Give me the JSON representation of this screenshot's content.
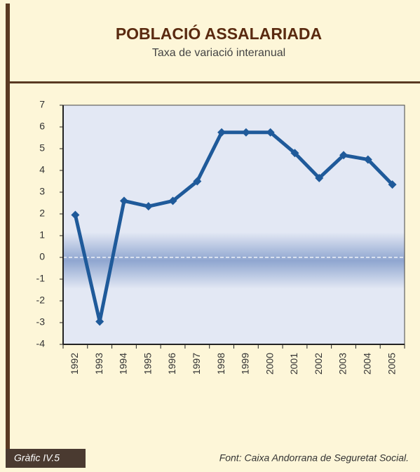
{
  "chart_data": {
    "type": "line",
    "title": "POBLACIÓ ASSALARIADA",
    "subtitle": "Taxa de variació interanual",
    "figure_label": "Gràfic IV.5",
    "source": "Font: Caixa Andorrana de Seguretat Social.",
    "categories": [
      "1992",
      "1993",
      "1994",
      "1995",
      "1996",
      "1997",
      "1998",
      "1999",
      "2000",
      "2001",
      "2002",
      "2003",
      "2004",
      "2005"
    ],
    "series": [
      {
        "name": "Taxa de variació interanual",
        "color": "#1f5a9a",
        "values": [
          1.95,
          -2.95,
          2.6,
          2.35,
          2.6,
          3.5,
          5.75,
          5.75,
          5.75,
          4.8,
          3.65,
          4.7,
          4.5,
          3.35
        ]
      }
    ],
    "ylim": [
      -4,
      7
    ],
    "yticks": [
      -4,
      -3,
      -2,
      -1,
      0,
      1,
      2,
      3,
      4,
      5,
      6,
      7
    ],
    "grid": false
  }
}
